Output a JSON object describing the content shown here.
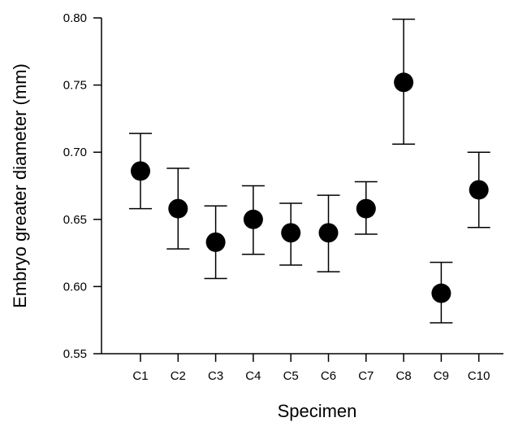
{
  "chart_data": {
    "type": "scatter",
    "title": "",
    "xlabel": "Specimen",
    "ylabel": "Embryo greater diameter (mm)",
    "ylim": [
      0.55,
      0.8
    ],
    "yticks": [
      "0.55",
      "0.60",
      "0.65",
      "0.70",
      "0.75",
      "0.80"
    ],
    "grid": false,
    "categories": [
      "C1",
      "C2",
      "C3",
      "C4",
      "C5",
      "C6",
      "C7",
      "C8",
      "C9",
      "C10"
    ],
    "series": [
      {
        "values": [
          0.686,
          0.658,
          0.633,
          0.65,
          0.64,
          0.64,
          0.658,
          0.752,
          0.595,
          0.672
        ],
        "error_low": [
          0.658,
          0.628,
          0.606,
          0.624,
          0.616,
          0.611,
          0.639,
          0.706,
          0.573,
          0.644
        ],
        "error_high": [
          0.714,
          0.688,
          0.66,
          0.675,
          0.662,
          0.668,
          0.678,
          0.799,
          0.618,
          0.7
        ]
      }
    ],
    "marker_color": "#000000"
  }
}
